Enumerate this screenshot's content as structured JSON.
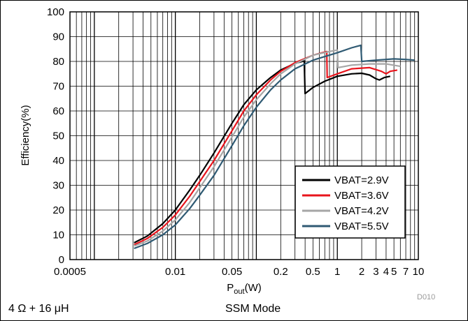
{
  "chart_data": {
    "type": "line",
    "title": "",
    "xlabel": {
      "base": "P",
      "sub": "out",
      "tail": "(W)"
    },
    "ylabel": "Efficiency(%)",
    "xscale": "log",
    "xlim": [
      0.0005,
      10
    ],
    "ylim": [
      0,
      100
    ],
    "grid": true,
    "legend": "bottom-right",
    "xticks": [
      {
        "value": 0.0005,
        "label": "0.0005"
      },
      {
        "value": 0.01,
        "label": "0.01"
      },
      {
        "value": 0.05,
        "label": "0.05"
      },
      {
        "value": 0.2,
        "label": "0.2"
      },
      {
        "value": 0.5,
        "label": "0.5"
      },
      {
        "value": 1,
        "label": "1"
      },
      {
        "value": 2,
        "label": "2"
      },
      {
        "value": 3,
        "label": "3"
      },
      {
        "value": 4,
        "label": "4"
      },
      {
        "value": 5,
        "label": "5"
      },
      {
        "value": 7,
        "label": "7"
      },
      {
        "value": 10,
        "label": "10"
      }
    ],
    "yticks": [
      {
        "value": 0,
        "label": "0"
      },
      {
        "value": 10,
        "label": "10"
      },
      {
        "value": 20,
        "label": "20"
      },
      {
        "value": 30,
        "label": "30"
      },
      {
        "value": 40,
        "label": "40"
      },
      {
        "value": 50,
        "label": "50"
      },
      {
        "value": 60,
        "label": "60"
      },
      {
        "value": 70,
        "label": "70"
      },
      {
        "value": 80,
        "label": "80"
      },
      {
        "value": 90,
        "label": "90"
      },
      {
        "value": 100,
        "label": "100"
      }
    ],
    "series": [
      {
        "name": "VBAT=2.9V",
        "color": "#000000",
        "points": [
          [
            0.0031,
            6.8
          ],
          [
            0.0045,
            9.5
          ],
          [
            0.007,
            14.5
          ],
          [
            0.01,
            20
          ],
          [
            0.015,
            28
          ],
          [
            0.02,
            34
          ],
          [
            0.03,
            43
          ],
          [
            0.05,
            55
          ],
          [
            0.07,
            62.5
          ],
          [
            0.1,
            68.5
          ],
          [
            0.15,
            73.5
          ],
          [
            0.2,
            76.5
          ],
          [
            0.3,
            79.2
          ],
          [
            0.39,
            80.2
          ],
          [
            0.4,
            67
          ],
          [
            0.5,
            69.5
          ],
          [
            0.7,
            72
          ],
          [
            1.0,
            74
          ],
          [
            1.5,
            75
          ],
          [
            2.0,
            75.2
          ],
          [
            2.5,
            74.5
          ],
          [
            3.0,
            73
          ],
          [
            3.3,
            72.5
          ],
          [
            3.8,
            73.5
          ],
          [
            4.5,
            74
          ]
        ]
      },
      {
        "name": "VBAT=3.6V",
        "color": "#e8141c",
        "points": [
          [
            0.0031,
            6
          ],
          [
            0.0045,
            8.5
          ],
          [
            0.007,
            13
          ],
          [
            0.01,
            18
          ],
          [
            0.015,
            25.5
          ],
          [
            0.02,
            31.5
          ],
          [
            0.03,
            40
          ],
          [
            0.05,
            52
          ],
          [
            0.07,
            60
          ],
          [
            0.1,
            66.5
          ],
          [
            0.15,
            72.5
          ],
          [
            0.2,
            76
          ],
          [
            0.3,
            79.5
          ],
          [
            0.5,
            82.5
          ],
          [
            0.74,
            84
          ],
          [
            0.75,
            73.5
          ],
          [
            1.0,
            75
          ],
          [
            1.5,
            77
          ],
          [
            2.5,
            77.5
          ],
          [
            3.5,
            76
          ],
          [
            4.0,
            75
          ],
          [
            4.5,
            76
          ],
          [
            5.5,
            76.5
          ]
        ]
      },
      {
        "name": "VBAT=4.2V",
        "color": "#a6a6a6",
        "points": [
          [
            0.0031,
            5.5
          ],
          [
            0.0045,
            7.5
          ],
          [
            0.007,
            11.5
          ],
          [
            0.01,
            16
          ],
          [
            0.015,
            23
          ],
          [
            0.02,
            29
          ],
          [
            0.03,
            37.5
          ],
          [
            0.05,
            49.5
          ],
          [
            0.07,
            57.5
          ],
          [
            0.1,
            64.5
          ],
          [
            0.15,
            71
          ],
          [
            0.2,
            75
          ],
          [
            0.3,
            79
          ],
          [
            0.5,
            82.5
          ],
          [
            0.8,
            84
          ],
          [
            1.0,
            84.6
          ],
          [
            1.02,
            77.5
          ],
          [
            1.5,
            78.5
          ],
          [
            2.5,
            79
          ],
          [
            4.0,
            79
          ],
          [
            6.0,
            78
          ]
        ]
      },
      {
        "name": "VBAT=5.5V",
        "color": "#2f5a73",
        "points": [
          [
            0.0031,
            4.5
          ],
          [
            0.0045,
            6.5
          ],
          [
            0.007,
            10
          ],
          [
            0.01,
            14
          ],
          [
            0.015,
            20.5
          ],
          [
            0.02,
            26
          ],
          [
            0.03,
            34
          ],
          [
            0.05,
            46
          ],
          [
            0.07,
            54
          ],
          [
            0.1,
            61.5
          ],
          [
            0.15,
            68.5
          ],
          [
            0.2,
            72.5
          ],
          [
            0.3,
            77
          ],
          [
            0.5,
            80.5
          ],
          [
            1.0,
            83.5
          ],
          [
            1.5,
            85.5
          ],
          [
            1.95,
            86.5
          ],
          [
            2.0,
            80
          ],
          [
            3.0,
            80.5
          ],
          [
            5.0,
            81
          ],
          [
            7.0,
            80.8
          ],
          [
            9.0,
            80.5
          ]
        ]
      }
    ]
  },
  "figure_id": "D010",
  "notes": {
    "left": "4 Ω + 16 μH",
    "right": "SSM Mode"
  }
}
